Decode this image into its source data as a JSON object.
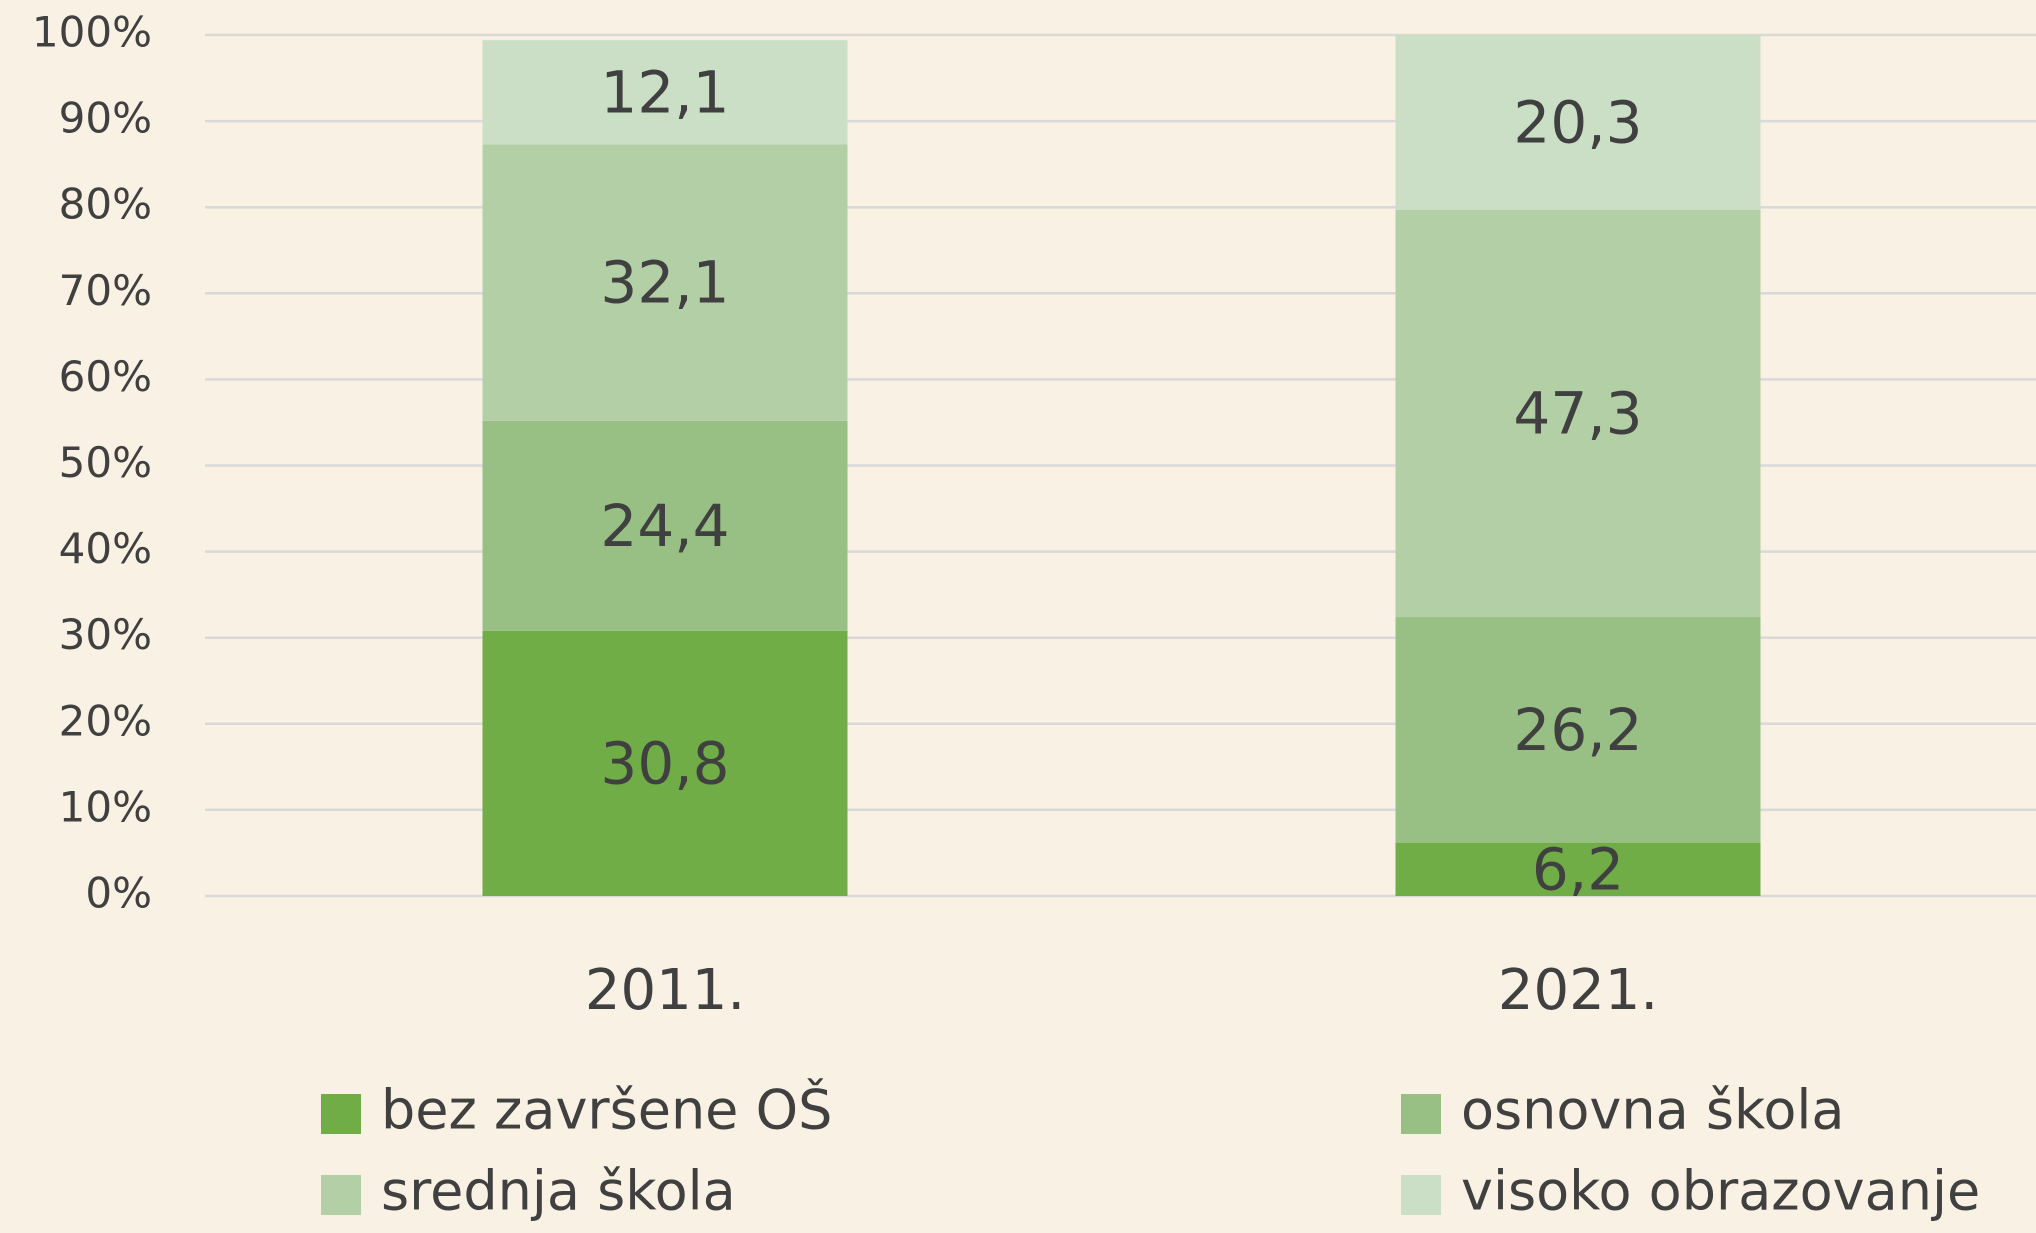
{
  "chart_data": {
    "type": "stacked_bar",
    "categories": [
      "2011.",
      "2021."
    ],
    "series": [
      {
        "name": "bez završene OŠ",
        "color": "#70ad47",
        "values": [
          30.8,
          6.2
        ],
        "value_labels": [
          "30,8",
          "6,2"
        ]
      },
      {
        "name": "osnovna škola",
        "color": "#98bf84",
        "values": [
          24.4,
          26.2
        ],
        "value_labels": [
          "24,4",
          "26,2"
        ]
      },
      {
        "name": "srednja škola",
        "color": "#b3cfa6",
        "values": [
          32.1,
          47.3
        ],
        "value_labels": [
          "32,1",
          "47,3"
        ]
      },
      {
        "name": "visoko obrazovanje",
        "color": "#cbdec6",
        "values": [
          12.1,
          20.3
        ],
        "value_labels": [
          "12,1",
          "20,3"
        ]
      }
    ],
    "ylim": [
      0,
      100
    ],
    "yticks": [
      {
        "value": 0,
        "label": "0%"
      },
      {
        "value": 10,
        "label": "10%"
      },
      {
        "value": 20,
        "label": "20%"
      },
      {
        "value": 30,
        "label": "30%"
      },
      {
        "value": 40,
        "label": "40%"
      },
      {
        "value": 50,
        "label": "50%"
      },
      {
        "value": 60,
        "label": "60%"
      },
      {
        "value": 70,
        "label": "70%"
      },
      {
        "value": 80,
        "label": "80%"
      },
      {
        "value": 90,
        "label": "90%"
      },
      {
        "value": 100,
        "label": "100%"
      }
    ],
    "grid": true,
    "legend": "bottom"
  }
}
